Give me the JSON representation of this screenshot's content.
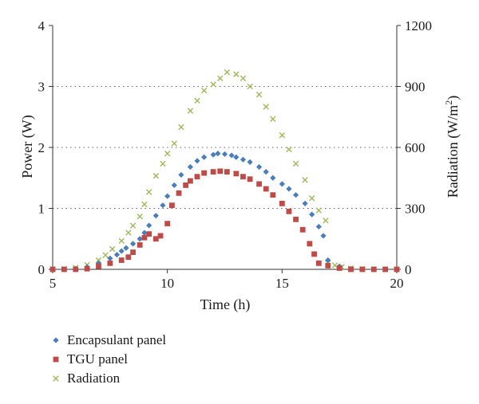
{
  "chart_data": {
    "type": "scatter",
    "title": "",
    "xlabel": "Time (h)",
    "ylabel_left": "Power (W)",
    "ylabel_right_main": "Radiation (W/m",
    "ylabel_right_sup": "2",
    "ylabel_right_close": ")",
    "xlim": [
      5,
      20
    ],
    "ylim_left": [
      0,
      4
    ],
    "ylim_right": [
      0,
      1200
    ],
    "x_ticks": [
      5,
      10,
      15,
      20
    ],
    "y_left_ticks": [
      0,
      1,
      2,
      3,
      4
    ],
    "y_right_ticks": [
      0,
      300,
      600,
      900,
      1200
    ],
    "grid": "horizontal dotted",
    "legend_position": "bottom-left",
    "series": [
      {
        "name": "Encapsulant panel",
        "axis": "left",
        "marker": "diamond",
        "color": "#4a7ebb",
        "x": [
          5.0,
          5.5,
          6.0,
          6.5,
          7.0,
          7.5,
          7.8,
          8.0,
          8.2,
          8.5,
          8.8,
          9.0,
          9.2,
          9.5,
          9.8,
          10.0,
          10.3,
          10.6,
          11.0,
          11.3,
          11.6,
          12.0,
          12.2,
          12.5,
          12.8,
          13.0,
          13.3,
          13.6,
          14.0,
          14.3,
          14.6,
          15.0,
          15.3,
          15.6,
          16.0,
          16.3,
          16.6,
          16.8,
          17.0,
          17.5,
          18.0,
          18.5,
          19.0,
          19.5,
          20.0
        ],
        "y": [
          0.0,
          0.0,
          0.01,
          0.04,
          0.1,
          0.18,
          0.24,
          0.3,
          0.35,
          0.42,
          0.5,
          0.6,
          0.72,
          0.88,
          1.05,
          1.2,
          1.38,
          1.55,
          1.68,
          1.78,
          1.84,
          1.88,
          1.9,
          1.89,
          1.87,
          1.84,
          1.8,
          1.76,
          1.68,
          1.6,
          1.5,
          1.4,
          1.32,
          1.22,
          1.08,
          0.9,
          0.7,
          0.55,
          0.15,
          0.05,
          0.01,
          0.0,
          0.0,
          0.0,
          0.0
        ]
      },
      {
        "name": "TGU panel",
        "axis": "left",
        "marker": "square",
        "color": "#be4b48",
        "x": [
          5.0,
          5.5,
          6.0,
          6.5,
          7.0,
          7.5,
          8.0,
          8.3,
          8.5,
          8.8,
          9.0,
          9.2,
          9.5,
          9.7,
          10.0,
          10.2,
          10.5,
          10.8,
          11.0,
          11.3,
          11.6,
          12.0,
          12.3,
          12.6,
          13.0,
          13.3,
          13.6,
          14.0,
          14.3,
          14.6,
          15.0,
          15.3,
          15.6,
          15.9,
          16.2,
          16.4,
          16.6,
          17.0,
          17.5,
          18.0,
          18.5,
          19.0,
          19.5,
          20.0
        ],
        "y": [
          0.0,
          0.0,
          0.0,
          0.01,
          0.05,
          0.1,
          0.15,
          0.2,
          0.28,
          0.4,
          0.52,
          0.58,
          0.5,
          0.55,
          0.75,
          1.05,
          1.25,
          1.38,
          1.45,
          1.52,
          1.58,
          1.6,
          1.61,
          1.6,
          1.57,
          1.52,
          1.48,
          1.4,
          1.32,
          1.22,
          1.08,
          0.95,
          0.82,
          0.65,
          0.42,
          0.25,
          0.1,
          0.06,
          0.02,
          0.0,
          0.0,
          0.0,
          0.0,
          0.0
        ]
      },
      {
        "name": "Radiation",
        "axis": "right",
        "marker": "x",
        "color": "#9bbb59",
        "x": [
          5.0,
          5.5,
          6.0,
          6.5,
          7.0,
          7.3,
          7.6,
          8.0,
          8.3,
          8.5,
          8.8,
          9.0,
          9.2,
          9.5,
          9.8,
          10.0,
          10.3,
          10.6,
          11.0,
          11.3,
          11.6,
          12.0,
          12.3,
          12.6,
          13.0,
          13.3,
          13.6,
          14.0,
          14.3,
          14.6,
          15.0,
          15.3,
          15.6,
          16.0,
          16.3,
          16.6,
          16.9,
          17.0,
          17.3,
          17.6,
          18.0,
          18.5,
          19.0,
          19.5,
          20.0
        ],
        "y": [
          0,
          2,
          8,
          22,
          45,
          70,
          100,
          140,
          180,
          215,
          260,
          320,
          380,
          460,
          520,
          570,
          620,
          700,
          780,
          830,
          880,
          910,
          940,
          970,
          960,
          940,
          900,
          860,
          800,
          740,
          660,
          590,
          520,
          440,
          350,
          290,
          240,
          30,
          20,
          12,
          5,
          2,
          0,
          0,
          0
        ]
      }
    ]
  }
}
